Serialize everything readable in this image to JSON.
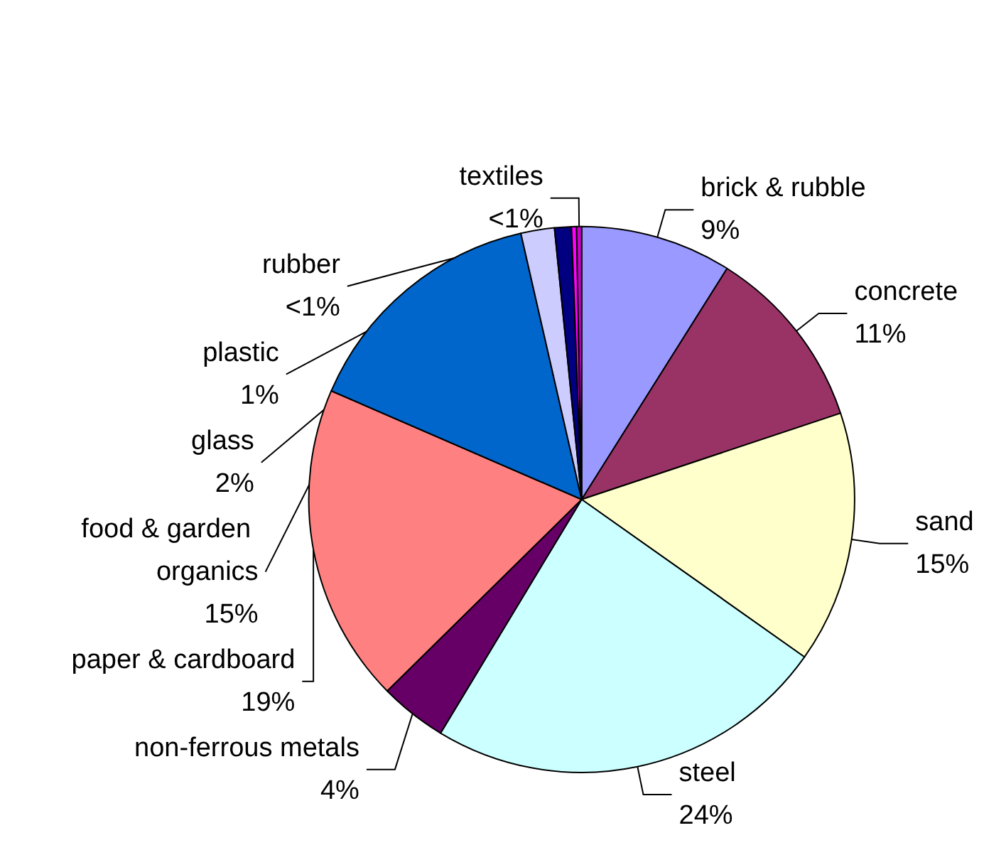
{
  "chart_data": {
    "type": "pie",
    "categories": [
      "brick & rubble",
      "concrete",
      "sand",
      "steel",
      "non-ferrous metals",
      "paper & cardboard",
      "food & garden organics",
      "glass",
      "plastic",
      "rubber",
      "textiles"
    ],
    "values": [
      9,
      11,
      15,
      24,
      4,
      19,
      15,
      2,
      1,
      0.3,
      0.3
    ],
    "value_labels": [
      "9%",
      "11%",
      "15%",
      "24%",
      "4%",
      "19%",
      "15%",
      "2%",
      "1%",
      "<1%",
      "<1%"
    ],
    "colors": [
      "#9999ff",
      "#993366",
      "#ffffcc",
      "#ccffff",
      "#660066",
      "#ff8080",
      "#0066cc",
      "#ccccff",
      "#000080",
      "#ff00ff",
      "#cc00cc"
    ],
    "legend": false
  }
}
